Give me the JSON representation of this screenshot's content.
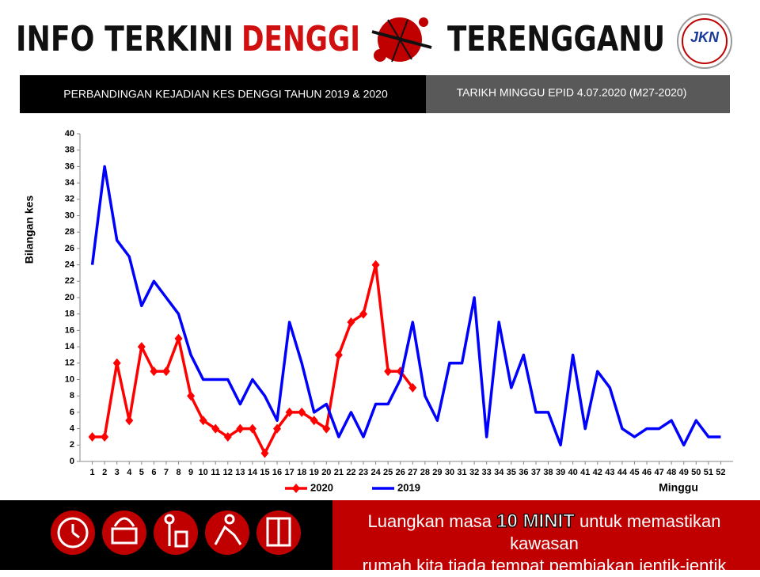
{
  "header": {
    "title_part1": "INFO TERKINI",
    "title_highlight": "DENGGI",
    "title_part2": "TERENGGANU",
    "logo": "JKN",
    "subtitle": "PERBANDINGAN KEJADIAN KES DENGGI TAHUN 2019 & 2020",
    "date": "TARIKH  MINGGU  EPID 4.07.2020 (M27-2020)"
  },
  "chart_data": {
    "type": "line",
    "y_label": "Bilangan kes",
    "x_label": "Minggu",
    "x": [
      1,
      2,
      3,
      4,
      5,
      6,
      7,
      8,
      9,
      10,
      11,
      12,
      13,
      14,
      15,
      16,
      17,
      18,
      19,
      20,
      21,
      22,
      23,
      24,
      25,
      26,
      27,
      28,
      29,
      30,
      31,
      32,
      33,
      34,
      35,
      36,
      37,
      38,
      39,
      40,
      41,
      42,
      43,
      44,
      45,
      46,
      47,
      48,
      49,
      50,
      51,
      52
    ],
    "xlim": [
      0,
      53
    ],
    "ylim": [
      0,
      40
    ],
    "yticks": [
      0,
      2,
      4,
      6,
      8,
      10,
      12,
      14,
      16,
      18,
      20,
      22,
      24,
      26,
      28,
      30,
      32,
      34,
      36,
      38,
      40
    ],
    "series": [
      {
        "name": "2020",
        "color": "#ff0000",
        "marker": "diamond",
        "values": [
          3,
          3,
          12,
          5,
          14,
          11,
          11,
          15,
          8,
          5,
          4,
          3,
          4,
          4,
          1,
          4,
          6,
          6,
          5,
          4,
          13,
          17,
          18,
          24,
          11,
          11,
          9,
          null,
          null,
          null,
          null,
          null,
          null,
          null,
          null,
          null,
          null,
          null,
          null,
          null,
          null,
          null,
          null,
          null,
          null,
          null,
          null,
          null,
          null,
          null,
          null,
          null
        ]
      },
      {
        "name": "2019",
        "color": "#0000ff",
        "values": [
          24,
          36,
          27,
          25,
          19,
          22,
          20,
          18,
          13,
          10,
          10,
          10,
          7,
          10,
          8,
          5,
          17,
          12,
          6,
          7,
          3,
          6,
          3,
          7,
          7,
          10,
          17,
          8,
          5,
          12,
          12,
          20,
          3,
          17,
          9,
          13,
          6,
          6,
          2,
          13,
          4,
          11,
          9,
          4,
          3,
          4,
          4,
          5,
          2,
          5,
          3,
          3
        ]
      }
    ]
  },
  "footer": {
    "message_start": "Luangkan masa",
    "message_highlight": "10 MINIT",
    "message_end": "untuk memastikan kawasan",
    "message_line2": "rumah kita tiada tempat pembiakan jentik-jentik"
  }
}
